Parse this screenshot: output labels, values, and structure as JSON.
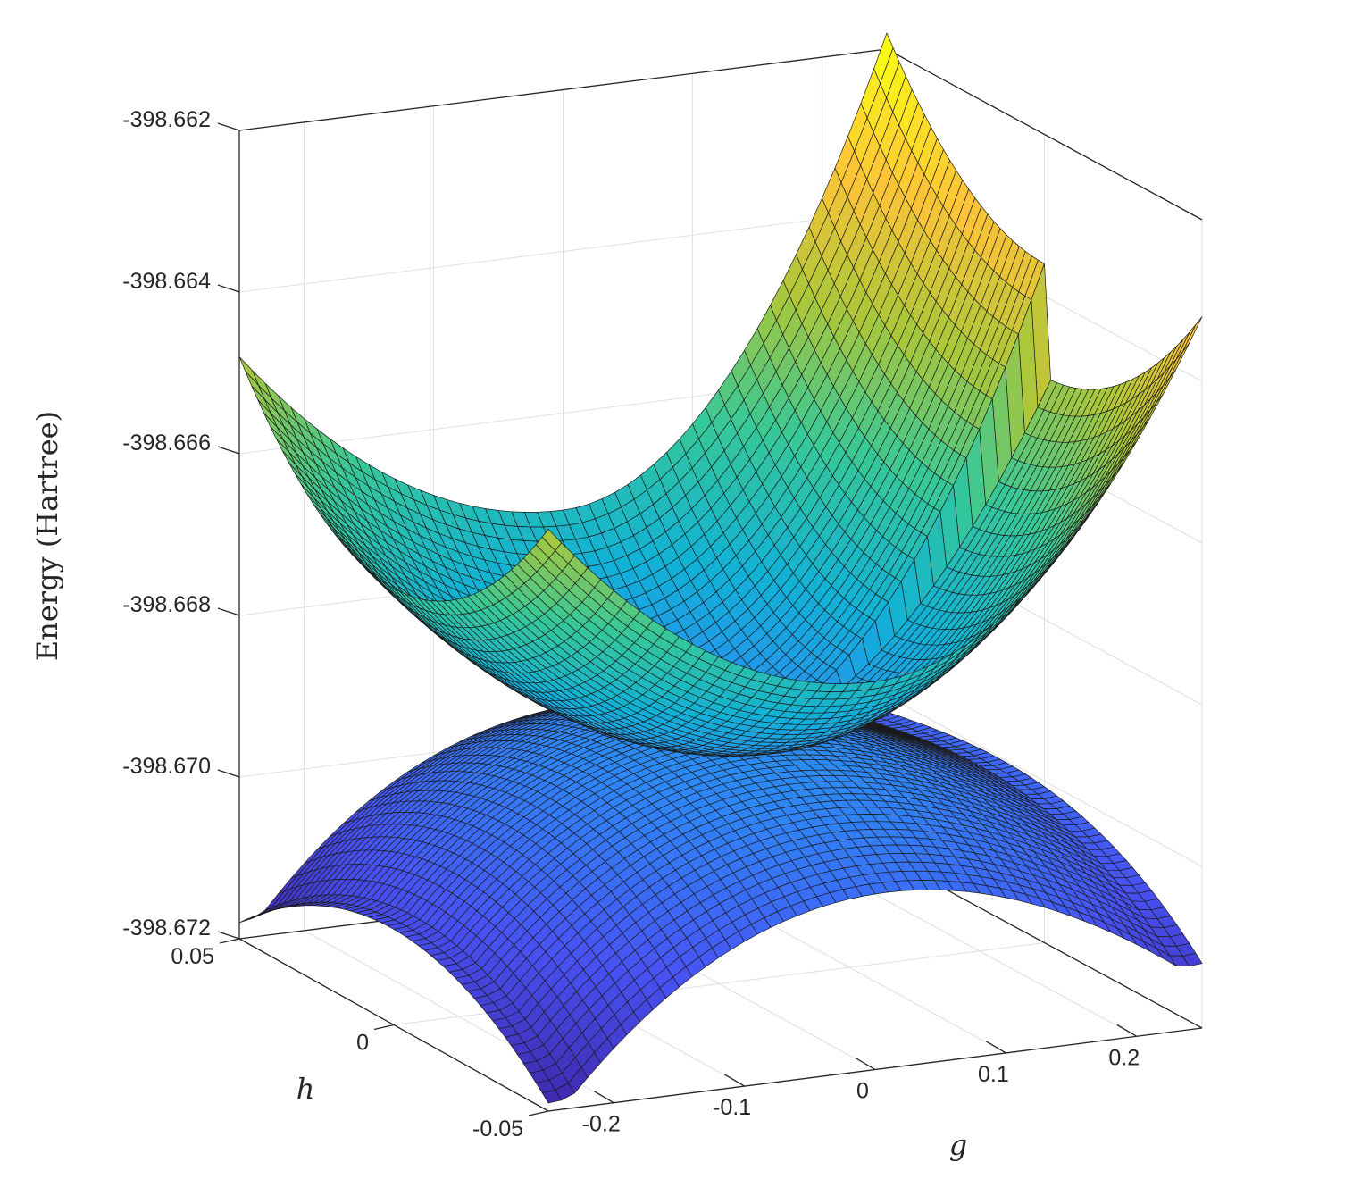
{
  "chart_data": {
    "type": "surface",
    "zlabel": "Energy (Hartree)",
    "xlabel": "g",
    "ylabel": "h",
    "x_ticks": [
      "-0.2",
      "-0.1",
      "0",
      "0.1",
      "0.2"
    ],
    "y_ticks": [
      "-0.05",
      "0",
      "0.05"
    ],
    "z_ticks": [
      "-398.672",
      "-398.670",
      "-398.668",
      "-398.666",
      "-398.664",
      "-398.662"
    ],
    "xlim": [
      -0.25,
      0.25
    ],
    "ylim": [
      -0.05,
      0.05
    ],
    "zlim": [
      -398.672,
      -398.662
    ],
    "grid": true,
    "colormap": "parula",
    "series": [
      {
        "surface": "upper",
        "values": {
          "min_at_g0_h0": -398.669,
          "corner_g0.25_h0.05": -398.6618,
          "corner_g0.25_h-0.05": -398.6632,
          "corner_g-0.25_h0.05": -398.6648,
          "edge_g0_h0.05": -398.6672
        }
      },
      {
        "surface": "lower",
        "values": {
          "ridge_max_g0_h0": -398.6689,
          "corner_g0.25_h0.05": -398.6702,
          "corner_g-0.25_h0.05": -398.6718,
          "corner_g-0.25_h-0.05": -398.6719,
          "corner_g0.25_h-0.05": -398.6712
        }
      }
    ]
  }
}
